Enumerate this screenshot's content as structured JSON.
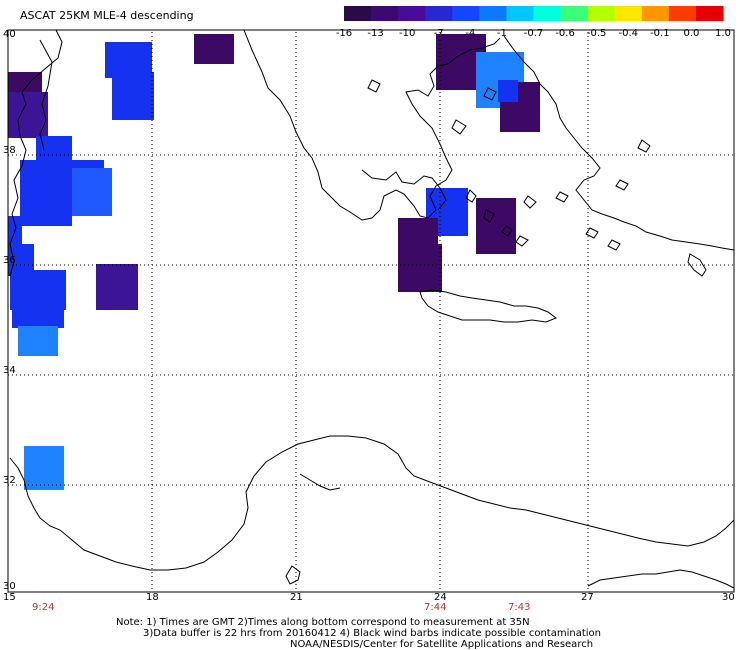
{
  "title": "ASCAT 25KM MLE-4 descending",
  "colorbar": {
    "labels": [
      "-16",
      "-13",
      "-10",
      "-7",
      "-4",
      "-1",
      "-0.7",
      "-0.6",
      "-0.5",
      "-0.4",
      "-0.1",
      "0.0",
      "1.0"
    ],
    "colors": [
      "#2b0a4a",
      "#3c0a6e",
      "#4a0a9a",
      "#2828d2",
      "#1446ff",
      "#0a78ff",
      "#00c8ff",
      "#00ffdc",
      "#3cff78",
      "#b4ff00",
      "#ffe600",
      "#ff9600",
      "#ff3c00",
      "#e60000"
    ]
  },
  "axes": {
    "lat_labels": [
      "40",
      "38",
      "36",
      "34",
      "32",
      "30"
    ],
    "lon_labels": [
      "15",
      "18",
      "21",
      "24",
      "27",
      "30"
    ]
  },
  "pass_times": [
    "9:24",
    "7:44",
    "7:43"
  ],
  "notes": [
    "Note: 1) Times are GMT 2)Times along bottom correspond to measurement at 35N",
    "3)Data buffer is 22 hrs from 20160412 4) Black wind barbs indicate possible contamination",
    "NOAA/NESDIS/Center for Satellite Applications and Research"
  ],
  "swath_colors": {
    "dark_purple": "#3c0a64",
    "purple": "#3c1496",
    "blue": "#1432f0",
    "mid_blue": "#1e5aff",
    "light_blue": "#1e82ff"
  }
}
